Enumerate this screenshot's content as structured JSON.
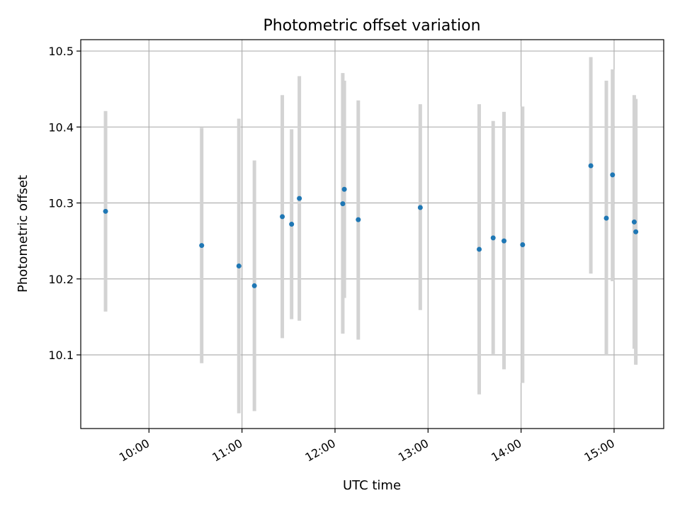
{
  "chart_data": {
    "type": "scatter",
    "title": "Photometric offset variation",
    "xlabel": "UTC time",
    "ylabel": "Photometric offset",
    "xlim": [
      "09:16",
      "15:32"
    ],
    "ylim": [
      10.003,
      10.515
    ],
    "xticks": [
      "10:00",
      "11:00",
      "12:00",
      "13:00",
      "14:00",
      "15:00"
    ],
    "yticks": [
      "10.1",
      "10.2",
      "10.3",
      "10.4",
      "10.5"
    ],
    "grid": true,
    "colors": {
      "points": "#1f77b4",
      "error_bars": "#d3d3d3"
    },
    "points": [
      {
        "time": "09:32",
        "value": 10.289,
        "low": 10.157,
        "high": 10.421
      },
      {
        "time": "10:34",
        "value": 10.244,
        "low": 10.089,
        "high": 10.399
      },
      {
        "time": "10:58",
        "value": 10.217,
        "low": 10.023,
        "high": 10.411
      },
      {
        "time": "11:08",
        "value": 10.191,
        "low": 10.026,
        "high": 10.356
      },
      {
        "time": "11:26",
        "value": 10.282,
        "low": 10.122,
        "high": 10.442
      },
      {
        "time": "11:32",
        "value": 10.272,
        "low": 10.147,
        "high": 10.397
      },
      {
        "time": "11:37",
        "value": 10.306,
        "low": 10.145,
        "high": 10.467
      },
      {
        "time": "12:05",
        "value": 10.299,
        "low": 10.128,
        "high": 10.471
      },
      {
        "time": "12:06",
        "value": 10.318,
        "low": 10.175,
        "high": 10.461
      },
      {
        "time": "12:15",
        "value": 10.278,
        "low": 10.12,
        "high": 10.435
      },
      {
        "time": "12:55",
        "value": 10.294,
        "low": 10.159,
        "high": 10.43
      },
      {
        "time": "13:33",
        "value": 10.239,
        "low": 10.048,
        "high": 10.43
      },
      {
        "time": "13:42",
        "value": 10.254,
        "low": 10.101,
        "high": 10.408
      },
      {
        "time": "13:49",
        "value": 10.25,
        "low": 10.081,
        "high": 10.42
      },
      {
        "time": "14:01",
        "value": 10.245,
        "low": 10.063,
        "high": 10.427
      },
      {
        "time": "14:45",
        "value": 10.349,
        "low": 10.207,
        "high": 10.492
      },
      {
        "time": "14:55",
        "value": 10.28,
        "low": 10.099,
        "high": 10.461
      },
      {
        "time": "14:59",
        "value": 10.337,
        "low": 10.197,
        "high": 10.476
      },
      {
        "time": "15:13",
        "value": 10.275,
        "low": 10.108,
        "high": 10.442
      },
      {
        "time": "15:14",
        "value": 10.262,
        "low": 10.087,
        "high": 10.437
      }
    ]
  }
}
